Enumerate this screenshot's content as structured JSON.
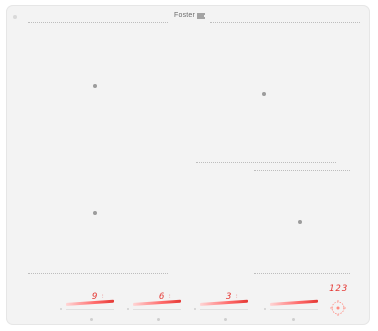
{
  "brand": {
    "name": "Foster",
    "logo_icon": "foster-flag-icon"
  },
  "zones": [
    {
      "id": "rear-left"
    },
    {
      "id": "rear-right"
    },
    {
      "id": "front-left"
    },
    {
      "id": "front-right"
    }
  ],
  "controls": {
    "sliders": [
      {
        "level": "9",
        "marker": "⁝"
      },
      {
        "level": "6",
        "marker": "⁝"
      },
      {
        "level": "3",
        "marker": "⁝"
      },
      {
        "level": "",
        "marker": ""
      }
    ],
    "timer": {
      "display": "123",
      "icon": "timer-dial-icon"
    }
  },
  "colors": {
    "glass": "#f3f3f3",
    "display_red": "#e53935",
    "zone_marker": "#9c9c9c"
  }
}
